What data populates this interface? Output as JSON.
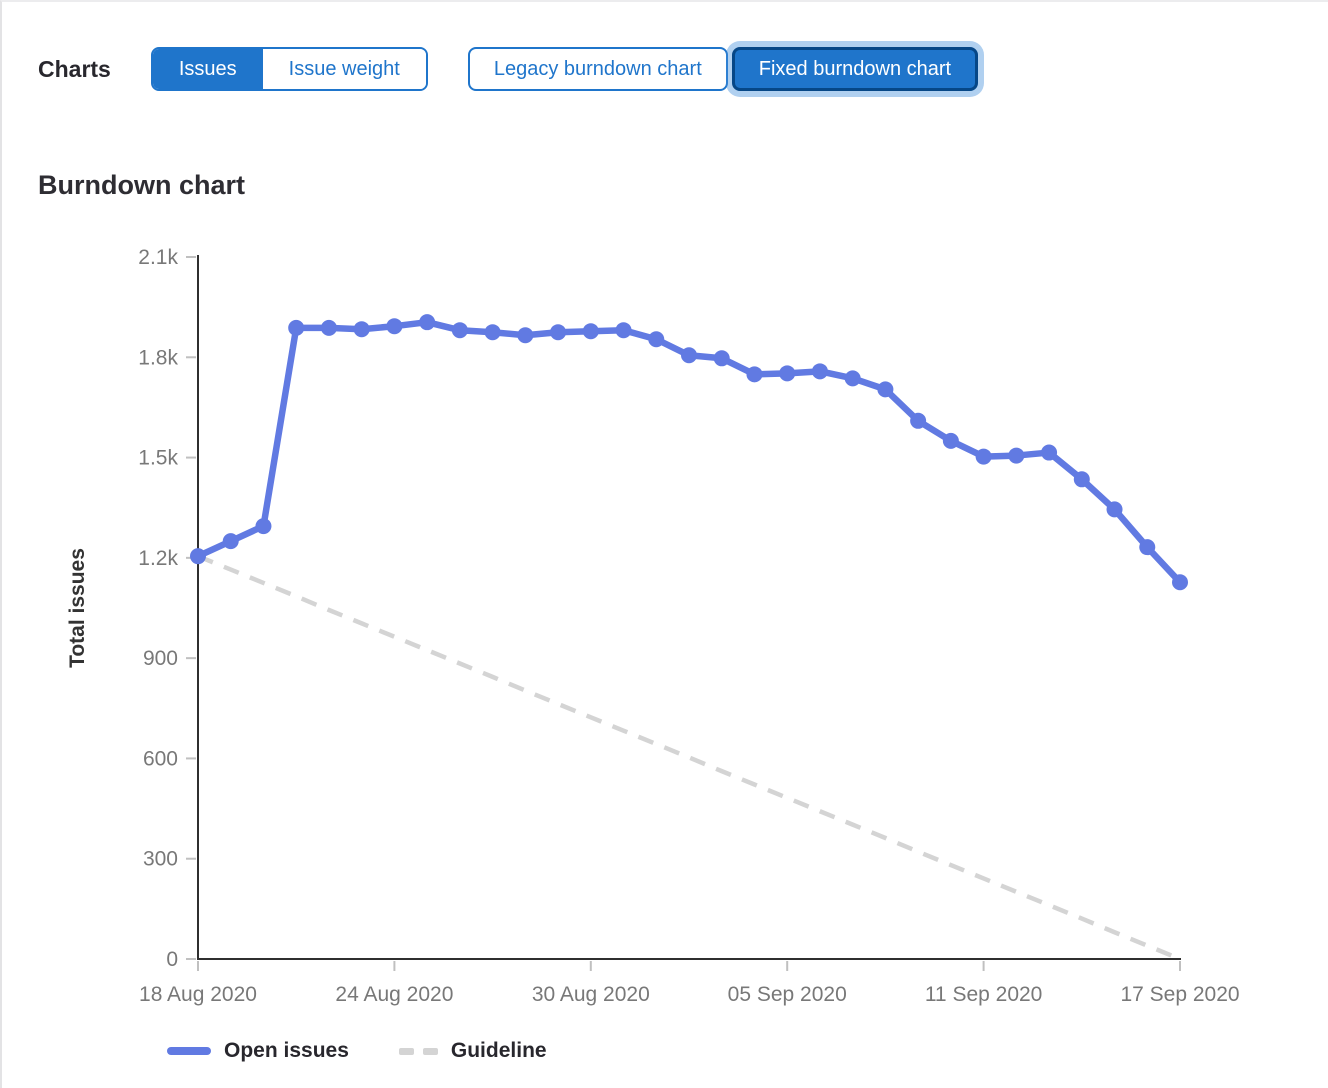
{
  "toolbar": {
    "label": "Charts",
    "metric_toggle": {
      "options": [
        {
          "label": "Issues",
          "active": true
        },
        {
          "label": "Issue weight",
          "active": false
        }
      ]
    },
    "chart_toggle": {
      "options": [
        {
          "label": "Legacy burndown chart",
          "active": false
        },
        {
          "label": "Fixed burndown chart",
          "active": true
        }
      ]
    }
  },
  "section": {
    "title": "Burndown chart"
  },
  "chart_data": {
    "type": "line",
    "title": "Burndown chart",
    "xlabel": "",
    "ylabel": "Total issues",
    "ylim": [
      0,
      2100
    ],
    "grid": false,
    "legend_position": "bottom",
    "y_ticks": {
      "values": [
        0,
        300,
        600,
        900,
        1200,
        1500,
        1800,
        2100
      ],
      "labels": [
        "0",
        "300",
        "600",
        "900",
        "1.2k",
        "1.5k",
        "1.8k",
        "2.1k"
      ]
    },
    "x_tick_indices": [
      0,
      6,
      12,
      18,
      24,
      30
    ],
    "x_tick_labels": [
      "18 Aug 2020",
      "24 Aug 2020",
      "30 Aug 2020",
      "05 Sep 2020",
      "11 Sep 2020",
      "17 Sep 2020"
    ],
    "categories": [
      "18 Aug 2020",
      "19 Aug 2020",
      "20 Aug 2020",
      "21 Aug 2020",
      "22 Aug 2020",
      "23 Aug 2020",
      "24 Aug 2020",
      "25 Aug 2020",
      "26 Aug 2020",
      "27 Aug 2020",
      "28 Aug 2020",
      "29 Aug 2020",
      "30 Aug 2020",
      "31 Aug 2020",
      "01 Sep 2020",
      "02 Sep 2020",
      "03 Sep 2020",
      "04 Sep 2020",
      "05 Sep 2020",
      "06 Sep 2020",
      "07 Sep 2020",
      "08 Sep 2020",
      "09 Sep 2020",
      "10 Sep 2020",
      "11 Sep 2020",
      "12 Sep 2020",
      "13 Sep 2020",
      "14 Sep 2020",
      "15 Sep 2020",
      "16 Sep 2020",
      "17 Sep 2020"
    ],
    "series": [
      {
        "name": "Open issues",
        "style": "solid",
        "markers": true,
        "color": "#617ae2",
        "values": [
          1205,
          1250,
          1295,
          1888,
          1888,
          1884,
          1893,
          1905,
          1881,
          1875,
          1866,
          1875,
          1878,
          1881,
          1854,
          1806,
          1797,
          1749,
          1752,
          1758,
          1737,
          1704,
          1610,
          1550,
          1503,
          1506,
          1515,
          1435,
          1345,
          1232,
          1127
        ]
      },
      {
        "name": "Guideline",
        "style": "dashed",
        "markers": false,
        "color": "#d4d4d4",
        "values": [
          1205,
          1165,
          1125,
          1085,
          1044,
          1004,
          964,
          924,
          884,
          844,
          803,
          763,
          723,
          683,
          643,
          603,
          562,
          522,
          482,
          442,
          402,
          362,
          321,
          281,
          241,
          201,
          161,
          121,
          80,
          40,
          0
        ]
      }
    ],
    "legend": [
      {
        "label": "Open issues",
        "swatch": "solid-line",
        "color": "#617ae2"
      },
      {
        "label": "Guideline",
        "swatch": "dashed-line",
        "color": "#d4d4d4"
      }
    ]
  },
  "colors": {
    "accent_blue": "#1f75cb",
    "active_button_border": "#064787",
    "focus_halo": "rgba(66,143,220,0.42)",
    "series_blue": "#617ae2",
    "guideline_gray": "#d4d4d4",
    "axis_line": "#2f2f2f",
    "tick_mark": "#c0c0c0",
    "tick_label": "#787878",
    "axis_title": "#333333"
  }
}
